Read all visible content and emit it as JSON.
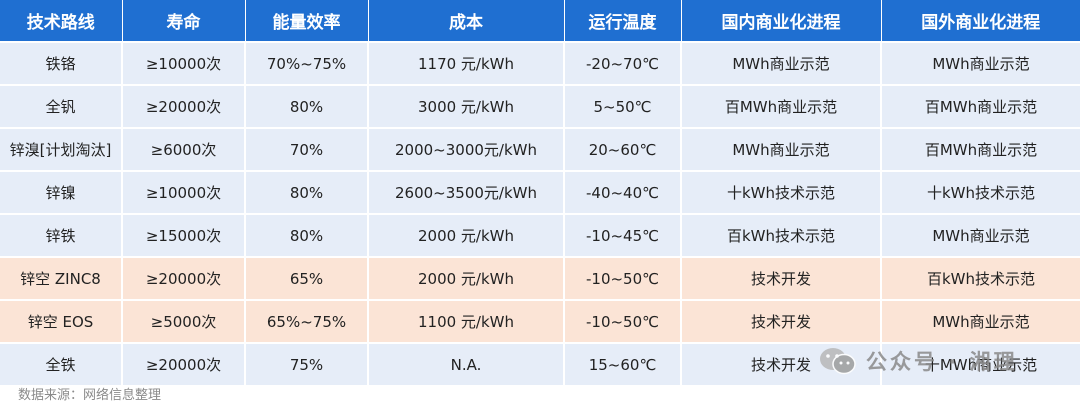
{
  "table": {
    "headers": [
      "技术路线",
      "寿命",
      "能量效率",
      "成本",
      "运行温度",
      "国内商业化进程",
      "国外商业化进程"
    ],
    "rows": [
      {
        "cells": [
          "铁铬",
          "≥10000次",
          "70%~75%",
          "1170 元/kWh",
          "-20~70℃",
          "MWh商业示范",
          "MWh商业示范"
        ],
        "highlight": false
      },
      {
        "cells": [
          "全钒",
          "≥20000次",
          "80%",
          "3000 元/kWh",
          "5~50℃",
          "百MWh商业示范",
          "百MWh商业示范"
        ],
        "highlight": false
      },
      {
        "cells": [
          "锌溴[计划淘汰]",
          "≥6000次",
          "70%",
          "2000~3000元/kWh",
          "20~60℃",
          "MWh商业示范",
          "百MWh商业示范"
        ],
        "highlight": false
      },
      {
        "cells": [
          "锌镍",
          "≥10000次",
          "80%",
          "2600~3500元/kWh",
          "-40~40℃",
          "十kWh技术示范",
          "十kWh技术示范"
        ],
        "highlight": false
      },
      {
        "cells": [
          "锌铁",
          "≥15000次",
          "80%",
          "2000 元/kWh",
          "-10~45℃",
          "百kWh技术示范",
          "MWh商业示范"
        ],
        "highlight": false
      },
      {
        "cells": [
          "锌空 ZINC8",
          "≥20000次",
          "65%",
          "2000 元/kWh",
          "-10~50℃",
          "技术开发",
          "百kWh技术示范"
        ],
        "highlight": true
      },
      {
        "cells": [
          "锌空 EOS",
          "≥5000次",
          "65%~75%",
          "1100 元/kWh",
          "-10~50℃",
          "技术开发",
          "MWh商业示范"
        ],
        "highlight": true
      },
      {
        "cells": [
          "全铁",
          "≥20000次",
          "75%",
          "N.A.",
          "15~60℃",
          "技术开发",
          "十MWh商业示范"
        ],
        "highlight": false
      }
    ]
  },
  "source_note": "数据来源：网络信息整理",
  "watermark": {
    "text": "公众号 · 湘理",
    "icon": "wechat-icon"
  },
  "colors": {
    "header_bg": "#1f6fd1",
    "row_bg": "#e6edf8",
    "highlight_bg": "#fbe4d6"
  }
}
